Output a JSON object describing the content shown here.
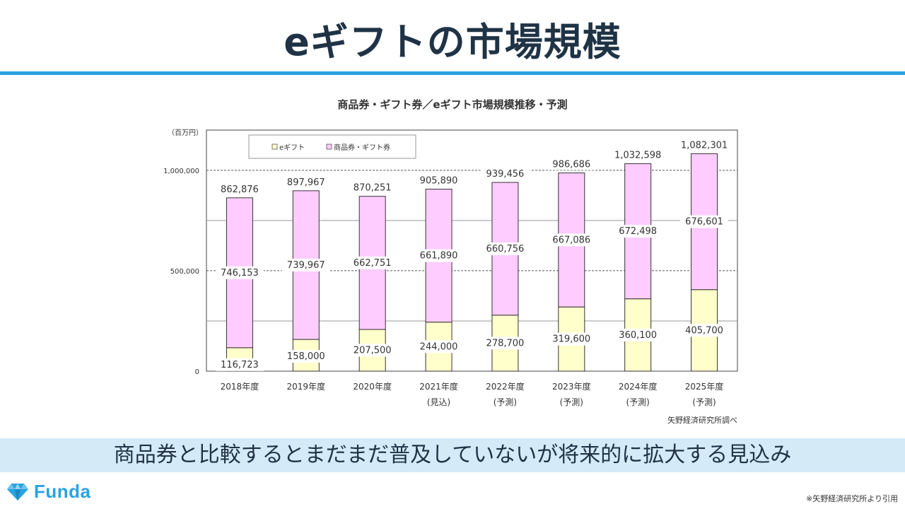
{
  "slide": {
    "title": "eギフトの市場規模",
    "caption": "商品券と比較するとまだまだ普及していないが将来的に拡大する見込み",
    "logo_text": "Funda",
    "footnote": "※矢野経済研究所より引用",
    "accent_color": "#29a3e0"
  },
  "chart_data": {
    "type": "bar",
    "stacked": true,
    "title": "商品券・ギフト券／eギフト市場規模推移・予測",
    "ylabel": "（百万円）",
    "ylim": [
      0,
      1200000
    ],
    "yticks": [
      {
        "value": 0,
        "label": "0"
      },
      {
        "value": 500000,
        "label": "500,000"
      },
      {
        "value": 1000000,
        "label": "1,000,000"
      }
    ],
    "categories": [
      "2018年度",
      "2019年度",
      "2020年度",
      "2021年度",
      "2022年度",
      "2023年度",
      "2024年度",
      "2025年度"
    ],
    "category_notes": [
      "",
      "",
      "",
      "(見込)",
      "(予測)",
      "(予測)",
      "(予測)",
      "(予測)"
    ],
    "series": [
      {
        "name": "eギフト",
        "color": "#ffffcc",
        "values": [
          116723,
          158000,
          207500,
          244000,
          278700,
          319600,
          360100,
          405700
        ],
        "labels": [
          "116,723",
          "158,000",
          "207,500",
          "244,000",
          "278,700",
          "319,600",
          "360,100",
          "405,700"
        ]
      },
      {
        "name": "商品券・ギフト券",
        "color": "#ffccff",
        "values": [
          746153,
          739967,
          662751,
          661890,
          660756,
          667086,
          672498,
          676601
        ],
        "labels": [
          "746,153",
          "739,967",
          "662,751",
          "661,890",
          "660,756",
          "667,086",
          "672,498",
          "676,601"
        ]
      }
    ],
    "totals": [
      "862,876",
      "897,967",
      "870,251",
      "905,890",
      "939,456",
      "986,686",
      "1,032,598",
      "1,082,301"
    ],
    "source": "矢野経済研究所調べ",
    "legend_position": "top-left"
  }
}
